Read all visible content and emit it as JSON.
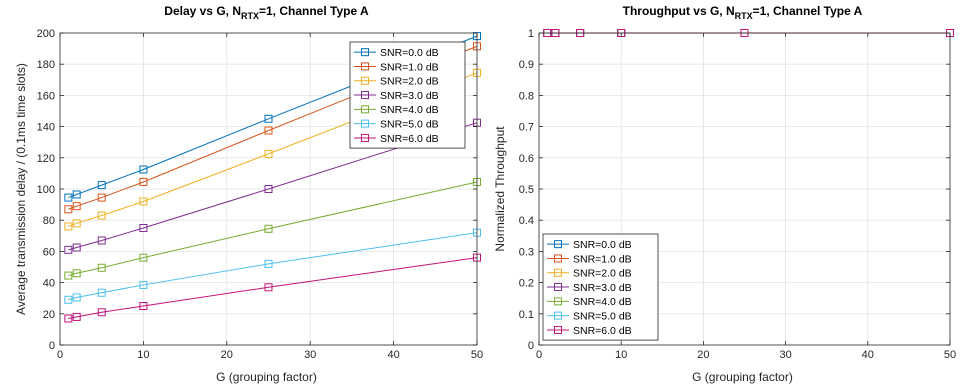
{
  "chart_data": [
    {
      "type": "line",
      "title": {
        "main": "Delay vs G, N",
        "sub": "RTX",
        "tail": "=1, Channel Type A"
      },
      "xlabel": "G (grouping factor)",
      "ylabel": "Average transmission delay / (0.1ms time slots)",
      "xlim": [
        0,
        50
      ],
      "ylim": [
        0,
        200
      ],
      "xticks": [
        0,
        10,
        20,
        30,
        40,
        50
      ],
      "yticks": [
        0,
        20,
        40,
        60,
        80,
        100,
        120,
        140,
        160,
        180,
        200
      ],
      "grid": true,
      "legend_position": "top-right",
      "x": [
        1,
        2,
        5,
        10,
        25,
        50
      ],
      "series": [
        {
          "name": "SNR=0.0 dB",
          "color": "#0072BD",
          "values": [
            94.5,
            96.5,
            102.5,
            112.5,
            145,
            198
          ]
        },
        {
          "name": "SNR=1.0 dB",
          "color": "#D95319",
          "values": [
            87,
            89,
            94.5,
            104.5,
            137.5,
            191.5
          ]
        },
        {
          "name": "SNR=2.0 dB",
          "color": "#EDB120",
          "values": [
            76,
            78,
            83,
            92,
            122.5,
            174.5
          ]
        },
        {
          "name": "SNR=3.0 dB",
          "color": "#7E2F8E",
          "values": [
            61,
            62.5,
            67,
            75,
            100,
            142.5
          ]
        },
        {
          "name": "SNR=4.0 dB",
          "color": "#77AC30",
          "values": [
            44.5,
            46,
            49.5,
            56,
            74.5,
            104.5
          ]
        },
        {
          "name": "SNR=5.0 dB",
          "color": "#4DBEEE",
          "values": [
            29,
            30.5,
            33.5,
            38.5,
            52,
            72
          ]
        },
        {
          "name": "SNR=6.0 dB",
          "color": "#C0147A",
          "values": [
            17,
            18,
            21,
            25,
            37,
            56
          ]
        }
      ]
    },
    {
      "type": "line",
      "title": {
        "main": "Throughput vs G, N",
        "sub": "RTX",
        "tail": "=1, Channel Type A"
      },
      "xlabel": "G (grouping factor)",
      "ylabel": "Normalized Throughput",
      "xlim": [
        0,
        50
      ],
      "ylim": [
        0,
        1
      ],
      "xticks": [
        0,
        10,
        20,
        30,
        40,
        50
      ],
      "yticks": [
        0,
        0.1,
        0.2,
        0.3,
        0.4,
        0.5,
        0.6,
        0.7,
        0.8,
        0.9,
        1
      ],
      "grid": true,
      "legend_position": "bottom-left",
      "x": [
        1,
        2,
        5,
        10,
        25,
        50
      ],
      "series": [
        {
          "name": "SNR=0.0 dB",
          "color": "#0072BD",
          "values": [
            1,
            1,
            1,
            1,
            1,
            1
          ]
        },
        {
          "name": "SNR=1.0 dB",
          "color": "#D95319",
          "values": [
            1,
            1,
            1,
            1,
            1,
            1
          ]
        },
        {
          "name": "SNR=2.0 dB",
          "color": "#EDB120",
          "values": [
            1,
            1,
            1,
            1,
            1,
            1
          ]
        },
        {
          "name": "SNR=3.0 dB",
          "color": "#7E2F8E",
          "values": [
            1,
            1,
            1,
            1,
            1,
            1
          ]
        },
        {
          "name": "SNR=4.0 dB",
          "color": "#77AC30",
          "values": [
            1,
            1,
            1,
            1,
            1,
            1
          ]
        },
        {
          "name": "SNR=5.0 dB",
          "color": "#4DBEEE",
          "values": [
            1,
            1,
            1,
            1,
            1,
            1
          ]
        },
        {
          "name": "SNR=6.0 dB",
          "color": "#C0147A",
          "values": [
            1,
            1,
            1,
            1,
            1,
            1
          ]
        }
      ]
    }
  ]
}
